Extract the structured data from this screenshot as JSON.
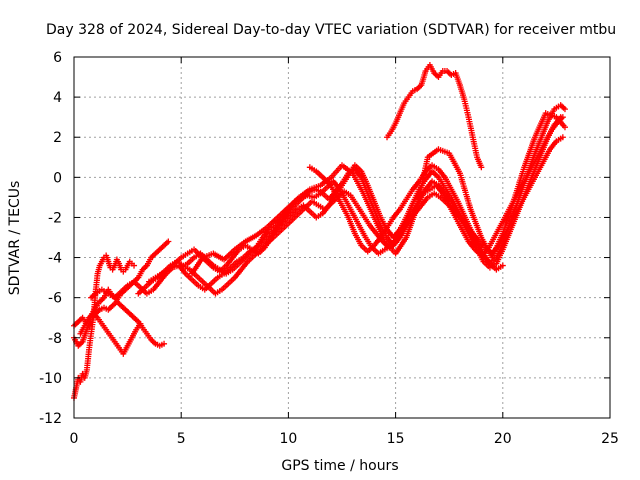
{
  "chart_data": {
    "type": "scatter",
    "title": "Day 328 of 2024, Sidereal Day-to-day VTEC variation (SDTVAR) for receiver mtbu",
    "xlabel": "GPS time / hours",
    "ylabel": "SDTVAR / TECUs",
    "xlim": [
      0,
      25
    ],
    "ylim": [
      -12,
      6
    ],
    "xticks": [
      "0",
      "5",
      "10",
      "15",
      "20",
      "25"
    ],
    "yticks": [
      "-12",
      "-10",
      "-8",
      "-6",
      "-4",
      "-2",
      "0",
      "2",
      "4",
      "6"
    ],
    "grid": true,
    "marker": "plus",
    "color": "#ff0000",
    "series": [
      {
        "x": [
          0.0,
          0.1,
          0.2,
          0.3,
          0.4,
          0.5,
          0.6,
          0.7,
          0.8,
          0.9,
          1.0,
          1.1,
          1.2,
          1.3,
          1.4,
          1.5,
          1.6,
          1.7,
          1.8,
          1.9,
          2.0,
          2.1,
          2.2,
          2.3,
          2.4,
          2.5,
          2.6,
          2.7,
          2.8
        ],
        "y": [
          -11.0,
          -10.5,
          -10.0,
          -10.2,
          -9.8,
          -10.0,
          -9.6,
          -8.6,
          -7.8,
          -7.0,
          -5.8,
          -4.8,
          -4.4,
          -4.2,
          -4.0,
          -3.9,
          -4.2,
          -4.5,
          -4.6,
          -4.4,
          -4.1,
          -4.3,
          -4.6,
          -4.7,
          -4.6,
          -4.4,
          -4.2,
          -4.3,
          -4.4
        ]
      },
      {
        "x": [
          0.0,
          0.2,
          0.4,
          0.6,
          0.8,
          1.0,
          1.2,
          1.4,
          1.6,
          1.8,
          2.0,
          2.2,
          2.4,
          2.6,
          2.8,
          3.0,
          3.2,
          3.4,
          3.6,
          3.8,
          4.0,
          4.2,
          4.4
        ],
        "y": [
          -7.4,
          -7.2,
          -7.0,
          -7.3,
          -6.9,
          -6.5,
          -6.2,
          -6.0,
          -5.6,
          -5.9,
          -6.1,
          -5.8,
          -5.6,
          -5.4,
          -5.2,
          -5.0,
          -4.6,
          -4.4,
          -4.0,
          -3.8,
          -3.6,
          -3.4,
          -3.2
        ]
      },
      {
        "x": [
          0.0,
          0.2,
          0.4,
          0.6,
          0.8,
          1.0,
          1.2,
          1.4,
          1.6,
          1.8,
          2.0,
          2.2,
          2.4,
          2.6,
          2.8,
          3.0,
          3.2,
          3.4,
          3.6,
          3.8,
          4.0,
          4.2
        ],
        "y": [
          -8.0,
          -8.4,
          -8.2,
          -7.6,
          -7.1,
          -6.8,
          -6.6,
          -6.5,
          -6.6,
          -6.4,
          -6.2,
          -6.4,
          -6.6,
          -6.8,
          -7.0,
          -7.2,
          -7.5,
          -7.8,
          -8.1,
          -8.3,
          -8.4,
          -8.3
        ]
      },
      {
        "x": [
          0.3,
          0.5,
          0.7,
          0.9,
          1.1,
          1.3,
          1.5,
          1.7,
          1.9,
          2.1,
          2.3,
          2.5,
          2.7,
          2.9,
          3.1
        ],
        "y": [
          -7.8,
          -7.4,
          -7.0,
          -6.8,
          -7.0,
          -7.3,
          -7.6,
          -7.9,
          -8.2,
          -8.5,
          -8.8,
          -8.4,
          -8.0,
          -7.6,
          -7.3
        ]
      },
      {
        "x": [
          0.8,
          1.0,
          1.3,
          1.6,
          1.9,
          2.2,
          2.5,
          2.8,
          3.1,
          3.4,
          3.7,
          4.0,
          4.3,
          4.6,
          4.9,
          5.2,
          5.5,
          5.8,
          6.1,
          6.4,
          6.7,
          7.0,
          7.3,
          7.6,
          7.9,
          8.2,
          8.5,
          8.8,
          9.1,
          9.4,
          9.7,
          10.0,
          10.3,
          10.6,
          10.9,
          11.2,
          11.5,
          11.8,
          12.1,
          12.4,
          12.7,
          13.0,
          13.3,
          13.6,
          13.9,
          14.2,
          14.5,
          14.8,
          15.1,
          15.4,
          15.7,
          16.0,
          16.3,
          16.6,
          16.9,
          17.2,
          17.5,
          17.8,
          18.1,
          18.4,
          18.7,
          19.0,
          19.3,
          19.6,
          19.9,
          20.2,
          20.5,
          20.8,
          21.1,
          21.4,
          21.7,
          22.0,
          22.3,
          22.6,
          22.8
        ],
        "y": [
          -6.0,
          -5.8,
          -5.6,
          -5.8,
          -6.0,
          -5.7,
          -5.4,
          -5.2,
          -5.5,
          -5.8,
          -5.6,
          -5.2,
          -4.8,
          -4.5,
          -4.4,
          -4.8,
          -5.1,
          -5.4,
          -5.6,
          -5.3,
          -5.0,
          -4.8,
          -4.5,
          -4.2,
          -4.0,
          -3.7,
          -3.5,
          -3.0,
          -2.6,
          -2.4,
          -2.0,
          -1.6,
          -1.2,
          -1.0,
          -0.9,
          -1.0,
          -0.8,
          -0.5,
          -0.2,
          -0.6,
          -1.2,
          -1.8,
          -2.4,
          -3.0,
          -3.5,
          -3.8,
          -3.6,
          -3.4,
          -3.0,
          -2.4,
          -1.8,
          -1.3,
          -0.8,
          -0.6,
          -0.4,
          -0.8,
          -1.4,
          -2.0,
          -2.6,
          -3.2,
          -3.6,
          -3.9,
          -3.6,
          -3.0,
          -2.4,
          -1.8,
          -1.2,
          -0.6,
          0.0,
          0.6,
          1.2,
          1.8,
          2.4,
          2.8,
          3.0
        ]
      },
      {
        "x": [
          3.0,
          3.3,
          3.6,
          3.9,
          4.2,
          4.5,
          4.8,
          5.1,
          5.4,
          5.7,
          6.0,
          6.3,
          6.6,
          6.9,
          7.2,
          7.5,
          7.8,
          8.1,
          8.4,
          8.7,
          9.0,
          9.3,
          9.6,
          9.9,
          10.2,
          10.5,
          10.8,
          11.1,
          11.4,
          11.7,
          12.0,
          12.3,
          12.6,
          12.9,
          13.2,
          13.5,
          13.8,
          14.1,
          14.4,
          14.7,
          15.0,
          15.3,
          15.6,
          15.9,
          16.2,
          16.5,
          16.8,
          17.1,
          17.4,
          17.7,
          18.0,
          18.3,
          18.6,
          18.9,
          19.2,
          19.5,
          19.8,
          20.1,
          20.4,
          20.7,
          21.0,
          21.3,
          21.6,
          21.9,
          22.2,
          22.5,
          22.8
        ],
        "y": [
          -5.8,
          -5.5,
          -5.2,
          -5.0,
          -4.7,
          -4.4,
          -4.2,
          -4.4,
          -4.6,
          -4.9,
          -5.2,
          -5.5,
          -5.8,
          -5.6,
          -5.3,
          -5.0,
          -4.6,
          -4.2,
          -3.9,
          -3.6,
          -3.3,
          -3.0,
          -2.7,
          -2.4,
          -2.1,
          -1.8,
          -1.5,
          -1.2,
          -1.4,
          -1.6,
          -1.3,
          -1.0,
          -0.7,
          -0.9,
          -1.4,
          -1.9,
          -2.4,
          -2.8,
          -3.2,
          -3.5,
          -3.2,
          -2.8,
          -2.3,
          -1.8,
          -1.4,
          -1.0,
          -0.8,
          -1.0,
          -1.3,
          -1.6,
          -2.0,
          -2.4,
          -2.8,
          -3.2,
          -3.5,
          -3.8,
          -3.4,
          -2.8,
          -2.2,
          -1.6,
          -1.0,
          -0.4,
          0.2,
          0.8,
          1.4,
          1.8,
          2.0
        ]
      },
      {
        "x": [
          3.5,
          3.8,
          4.1,
          4.4,
          4.7,
          5.0,
          5.3,
          5.6,
          5.9,
          6.2,
          6.5,
          6.8,
          7.1,
          7.4,
          7.7,
          8.0,
          8.3,
          8.6,
          8.9,
          9.2,
          9.5,
          9.8,
          10.1,
          10.4,
          10.7,
          11.0,
          11.3,
          11.6,
          11.9,
          12.2,
          12.5,
          12.8,
          13.1,
          13.4,
          13.7,
          14.0,
          14.3,
          14.6,
          14.9,
          15.2,
          15.5,
          15.8,
          16.1,
          16.4,
          16.7,
          17.0,
          17.3,
          17.6,
          17.9,
          18.2,
          18.5,
          18.8,
          19.1,
          19.4,
          19.7,
          20.0,
          20.3,
          20.6,
          20.9,
          21.2,
          21.5,
          21.8,
          22.1,
          22.4,
          22.7
        ],
        "y": [
          -5.2,
          -5.0,
          -4.8,
          -4.6,
          -4.3,
          -4.0,
          -3.8,
          -3.6,
          -3.9,
          -4.2,
          -4.5,
          -4.7,
          -4.4,
          -4.0,
          -3.6,
          -3.4,
          -3.6,
          -3.8,
          -3.5,
          -3.0,
          -2.5,
          -2.0,
          -1.6,
          -1.3,
          -1.0,
          -0.7,
          -0.6,
          -0.8,
          -1.1,
          -0.7,
          -0.3,
          0.2,
          0.4,
          0.0,
          -0.8,
          -1.6,
          -2.4,
          -3.0,
          -3.4,
          -3.0,
          -2.4,
          -1.8,
          -1.2,
          -0.6,
          -0.2,
          -0.4,
          -0.8,
          -1.2,
          -1.8,
          -2.4,
          -3.0,
          -3.6,
          -4.2,
          -4.5,
          -4.3,
          -3.6,
          -2.8,
          -2.0,
          -1.2,
          -0.4,
          0.4,
          1.2,
          2.0,
          2.6,
          3.0
        ]
      },
      {
        "x": [
          5.0,
          5.3,
          5.6,
          5.9,
          6.2,
          6.5,
          6.8,
          7.1,
          7.4,
          7.7,
          8.0,
          8.3,
          8.6,
          8.9,
          9.2,
          9.5,
          9.8,
          10.1,
          10.4,
          10.7,
          11.0,
          11.3,
          11.6,
          11.9,
          12.2,
          12.5,
          12.8,
          13.1,
          13.4,
          13.7,
          14.0,
          14.3,
          14.6,
          14.9,
          15.2,
          15.5,
          15.8,
          16.1,
          16.4,
          16.7,
          17.0,
          17.3,
          17.6,
          17.9,
          18.2,
          18.5,
          18.8,
          19.1,
          19.4,
          19.7,
          20.0,
          20.3,
          20.6,
          20.9,
          21.2,
          21.5,
          21.8,
          22.1,
          22.4,
          22.7,
          22.9
        ],
        "y": [
          -4.5,
          -4.3,
          -4.0,
          -3.8,
          -4.1,
          -4.4,
          -4.6,
          -4.8,
          -4.6,
          -4.3,
          -4.0,
          -3.7,
          -3.4,
          -3.1,
          -2.8,
          -2.5,
          -2.2,
          -1.9,
          -1.6,
          -1.4,
          -1.7,
          -2.0,
          -1.8,
          -1.4,
          -0.9,
          -0.4,
          0.1,
          0.6,
          0.3,
          -0.4,
          -1.2,
          -2.0,
          -2.6,
          -3.0,
          -2.6,
          -2.0,
          -1.3,
          -0.6,
          -0.1,
          0.3,
          0.0,
          -0.5,
          -1.0,
          -1.6,
          -2.2,
          -2.8,
          -3.4,
          -3.9,
          -4.3,
          -4.0,
          -3.3,
          -2.4,
          -1.5,
          -0.6,
          0.3,
          1.2,
          2.0,
          2.8,
          3.4,
          3.6,
          3.4
        ]
      },
      {
        "x": [
          5.5,
          6.0,
          6.5,
          7.0,
          7.5,
          8.0,
          8.5,
          9.0,
          9.5,
          10.0,
          10.5,
          11.0,
          11.5,
          12.0,
          12.5,
          13.0,
          13.5,
          14.0,
          14.5,
          15.0,
          15.5,
          16.0,
          16.5,
          17.0,
          17.5,
          18.0,
          18.5,
          19.0,
          19.5,
          20.0,
          20.5,
          21.0,
          21.5,
          22.0,
          22.5,
          22.9
        ],
        "y": [
          -4.8,
          -4.0,
          -3.8,
          -4.1,
          -3.6,
          -3.2,
          -2.9,
          -2.5,
          -2.0,
          -1.5,
          -1.0,
          -0.6,
          -0.4,
          0.0,
          0.6,
          0.2,
          -0.8,
          -2.0,
          -3.2,
          -3.8,
          -3.0,
          -1.5,
          1.0,
          1.4,
          1.2,
          0.2,
          -1.6,
          -3.0,
          -4.0,
          -2.8,
          -1.2,
          0.5,
          2.0,
          3.2,
          3.0,
          2.5
        ]
      },
      {
        "x": [
          14.6,
          14.8,
          15.0,
          15.2,
          15.4,
          15.6,
          15.8,
          16.0,
          16.2,
          16.4,
          16.6,
          16.8,
          17.0,
          17.2,
          17.4,
          17.6,
          17.8,
          18.0,
          18.2,
          18.4,
          18.6,
          18.8,
          19.0
        ],
        "y": [
          2.0,
          2.3,
          2.7,
          3.2,
          3.7,
          4.0,
          4.3,
          4.4,
          4.6,
          5.3,
          5.6,
          5.2,
          5.0,
          5.3,
          5.3,
          5.1,
          5.2,
          4.6,
          3.9,
          3.0,
          2.0,
          1.0,
          0.5
        ]
      },
      {
        "x": [
          11.0,
          11.3,
          11.6,
          11.9,
          12.2,
          12.5,
          12.8,
          13.1,
          13.4,
          13.7,
          14.0,
          14.3,
          14.6,
          14.9,
          15.2,
          15.5,
          15.8,
          16.1,
          16.4,
          16.7,
          17.0,
          17.3,
          17.6,
          17.9,
          18.2,
          18.5,
          18.8,
          19.1,
          19.4,
          19.7,
          20.0
        ],
        "y": [
          0.5,
          0.3,
          0.0,
          -0.3,
          -0.8,
          -1.4,
          -2.0,
          -2.8,
          -3.4,
          -3.7,
          -3.4,
          -3.0,
          -2.5,
          -2.0,
          -1.6,
          -1.1,
          -0.6,
          -0.2,
          0.3,
          0.6,
          0.4,
          0.0,
          -0.6,
          -1.2,
          -1.9,
          -2.6,
          -3.2,
          -3.8,
          -4.3,
          -4.6,
          -4.4
        ]
      }
    ]
  }
}
